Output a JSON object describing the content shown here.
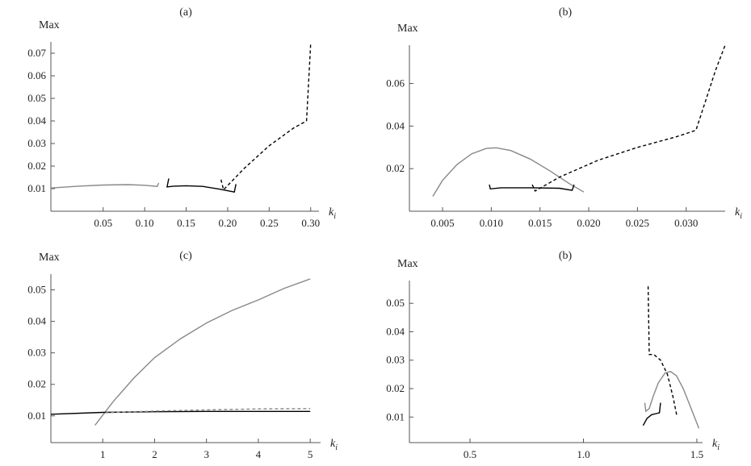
{
  "chart_data": [
    {
      "type": "line",
      "title": "(a)",
      "ylabel": "Max",
      "xlabel": "k",
      "xlabel_subscript": "i",
      "xlim": [
        -0.013,
        0.31
      ],
      "ylim": [
        0,
        0.075
      ],
      "xticks": [
        0.05,
        {
          "value": 0.1,
          "label": "0.10"
        },
        0.15,
        {
          "value": 0.2,
          "label": "0.20"
        },
        0.25,
        {
          "value": 0.3,
          "label": "0.30"
        }
      ],
      "yticks": [
        0.01,
        0.02,
        0.03,
        0.04,
        0.05,
        0.06,
        0.07
      ],
      "series": [
        {
          "color": "#888888",
          "dashed": false,
          "x": [
            -0.013,
            0.02,
            0.05,
            0.08,
            0.1,
            0.115,
            0.117
          ],
          "values": [
            0.0103,
            0.0111,
            0.0116,
            0.0118,
            0.0115,
            0.011,
            0.0125
          ]
        },
        {
          "color": "#000000",
          "dashed": false,
          "x": [
            0.129,
            0.127,
            0.135,
            0.15,
            0.17,
            0.19,
            0.208,
            0.21
          ],
          "values": [
            0.0145,
            0.0108,
            0.0111,
            0.0113,
            0.011,
            0.0098,
            0.0085,
            0.012
          ]
        },
        {
          "color": "#000000",
          "dashed": true,
          "x": [
            0.192,
            0.195,
            0.22,
            0.25,
            0.28,
            0.295,
            0.3
          ],
          "values": [
            0.014,
            0.0095,
            0.019,
            0.029,
            0.037,
            0.04,
            0.074
          ]
        }
      ]
    },
    {
      "type": "line",
      "title": "(b)",
      "ylabel": "Max",
      "xlabel": "k",
      "xlabel_subscript": "i",
      "xlim": [
        0.0016,
        0.034
      ],
      "ylim": [
        0,
        0.078
      ],
      "xticks": [
        0.005,
        {
          "value": 0.01,
          "label": "0.010"
        },
        0.015,
        {
          "value": 0.02,
          "label": "0.020"
        },
        0.025,
        {
          "value": 0.03,
          "label": "0.030"
        }
      ],
      "yticks": [
        0.02,
        0.04,
        0.06
      ],
      "series": [
        {
          "color": "#888888",
          "dashed": false,
          "x": [
            0.004,
            0.005,
            0.0065,
            0.008,
            0.0095,
            0.0105,
            0.012,
            0.014,
            0.016,
            0.018,
            0.0195
          ],
          "values": [
            0.007,
            0.0145,
            0.022,
            0.027,
            0.0295,
            0.0298,
            0.0285,
            0.0245,
            0.019,
            0.013,
            0.009
          ]
        },
        {
          "color": "#000000",
          "dashed": false,
          "x": [
            0.0098,
            0.0099,
            0.011,
            0.014,
            0.017,
            0.0183,
            0.0185
          ],
          "values": [
            0.0125,
            0.0105,
            0.011,
            0.011,
            0.0108,
            0.0098,
            0.0125
          ]
        },
        {
          "color": "#000000",
          "dashed": true,
          "x": [
            0.0142,
            0.0145,
            0.017,
            0.021,
            0.025,
            0.029,
            0.031,
            0.032,
            0.033,
            0.034
          ],
          "values": [
            0.0125,
            0.0095,
            0.016,
            0.024,
            0.03,
            0.035,
            0.038,
            0.052,
            0.066,
            0.078
          ]
        }
      ]
    },
    {
      "type": "line",
      "title": "(c)",
      "ylabel": "Max",
      "xlabel": "k",
      "xlabel_subscript": "i",
      "xlim": [
        0,
        5.2
      ],
      "ylim": [
        0.0015,
        0.055
      ],
      "xticks": [
        1,
        2,
        3,
        4,
        5
      ],
      "yticks": [
        0.01,
        0.02,
        0.03,
        0.04,
        0.05
      ],
      "series": [
        {
          "color": "#888888",
          "dashed": false,
          "x": [
            0.85,
            1.2,
            1.6,
            2,
            2.5,
            3,
            3.5,
            4,
            4.5,
            5
          ],
          "values": [
            0.007,
            0.0145,
            0.022,
            0.0285,
            0.0345,
            0.0395,
            0.0435,
            0.0468,
            0.0505,
            0.0535
          ]
        },
        {
          "color": "#000000",
          "dashed": false,
          "x": [
            0,
            1,
            2,
            3,
            4,
            5
          ],
          "values": [
            0.0105,
            0.0111,
            0.0113,
            0.0114,
            0.0114,
            0.0114
          ]
        },
        {
          "color": "#888888",
          "dashed": true,
          "x": [
            1.05,
            2,
            3,
            4,
            5
          ],
          "values": [
            0.011,
            0.0115,
            0.0119,
            0.0122,
            0.0123
          ]
        }
      ]
    },
    {
      "type": "line",
      "title": "(b)",
      "ylabel": "Max",
      "xlabel": "k",
      "xlabel_subscript": "i",
      "xlim": [
        0.233,
        1.525
      ],
      "ylim": [
        0.001,
        0.058
      ],
      "xticks": [
        0.5,
        {
          "value": 1,
          "label": "1.0"
        },
        1.5
      ],
      "yticks": [
        0.01,
        0.02,
        0.03,
        0.04,
        0.05
      ],
      "series": [
        {
          "color": "#888888",
          "dashed": false,
          "x": [
            1.27,
            1.275,
            1.29,
            1.306,
            1.33,
            1.36,
            1.384,
            1.41,
            1.44,
            1.47,
            1.509
          ],
          "values": [
            0.015,
            0.012,
            0.013,
            0.017,
            0.022,
            0.0255,
            0.026,
            0.0245,
            0.02,
            0.014,
            0.006
          ]
        },
        {
          "color": "#000000",
          "dashed": false,
          "x": [
            1.263,
            1.28,
            1.3,
            1.32,
            1.335,
            1.34
          ],
          "values": [
            0.007,
            0.0095,
            0.0108,
            0.0112,
            0.0115,
            0.015
          ]
        },
        {
          "color": "#000000",
          "dashed": true,
          "x": [
            1.285,
            1.29,
            1.31,
            1.34,
            1.37,
            1.395,
            1.413
          ],
          "values": [
            0.056,
            0.032,
            0.032,
            0.03,
            0.025,
            0.017,
            0.01
          ]
        }
      ]
    }
  ]
}
